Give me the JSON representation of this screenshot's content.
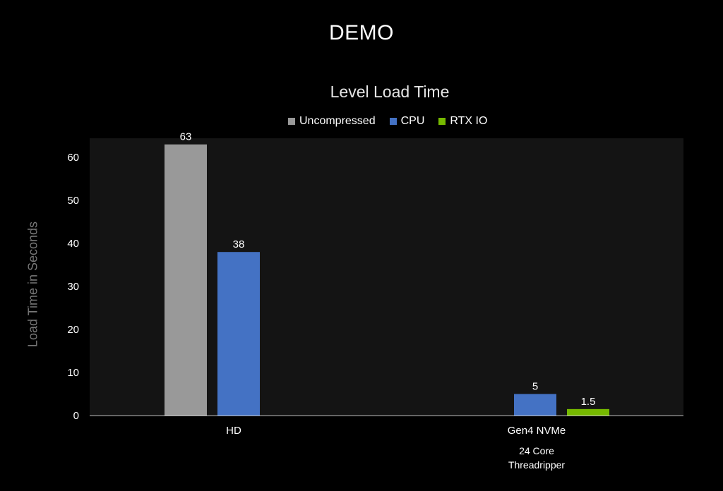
{
  "page_title": "DEMO",
  "chart_data": {
    "type": "bar",
    "title": "Level Load Time",
    "ylabel": "Load Time in Seconds",
    "xlabel": "",
    "ylim": [
      0,
      65
    ],
    "yticks": [
      0,
      10,
      20,
      30,
      40,
      50,
      60
    ],
    "categories": [
      "HD",
      "Gen4 NVMe"
    ],
    "category_sublabels": [
      [],
      [
        "24 Core",
        "Threadripper"
      ]
    ],
    "series": [
      {
        "name": "Uncompressed",
        "color": "#999999",
        "values": [
          63,
          null
        ]
      },
      {
        "name": "CPU",
        "color": "#4472C4",
        "values": [
          38,
          5
        ]
      },
      {
        "name": "RTX IO",
        "color": "#76B900",
        "values": [
          null,
          1.5
        ]
      }
    ],
    "data_labels": true,
    "grid": false,
    "legend_position": "top",
    "colors": {
      "background": "#000000",
      "plot_background": "#141414",
      "axis": "#bfbfbf"
    }
  }
}
